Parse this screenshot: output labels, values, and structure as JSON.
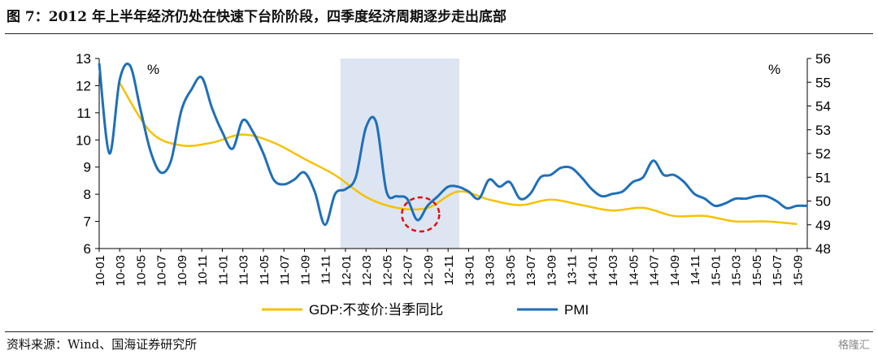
{
  "header": {
    "title": "图 7：2012 年上半年经济仍处在快速下台阶阶段，四季度经济周期逐步走出底部"
  },
  "footer": {
    "source": "资料来源：Wind、国海证券研究所",
    "watermark": "格隆汇"
  },
  "chart_data": {
    "type": "line",
    "title": "",
    "x": [
      "10-01",
      "10-02",
      "10-03",
      "10-04",
      "10-05",
      "10-06",
      "10-07",
      "10-08",
      "10-09",
      "10-10",
      "10-11",
      "10-12",
      "11-01",
      "11-02",
      "11-03",
      "11-04",
      "11-05",
      "11-06",
      "11-07",
      "11-08",
      "11-09",
      "11-10",
      "11-11",
      "11-12",
      "12-01",
      "12-02",
      "12-03",
      "12-04",
      "12-05",
      "12-06",
      "12-07",
      "12-08",
      "12-09",
      "12-10",
      "12-11",
      "12-12",
      "13-01",
      "13-02",
      "13-03",
      "13-04",
      "13-05",
      "13-06",
      "13-07",
      "13-08",
      "13-09",
      "13-10",
      "13-11",
      "13-12",
      "14-01",
      "14-02",
      "14-03",
      "14-04",
      "14-05",
      "14-06",
      "14-07",
      "14-08",
      "14-09",
      "14-10",
      "14-11",
      "14-12",
      "15-01",
      "15-02",
      "15-03",
      "15-04",
      "15-05",
      "15-06",
      "15-07",
      "15-08",
      "15-09",
      "15-10"
    ],
    "tick_labels": [
      "10-01",
      "10-03",
      "10-05",
      "10-07",
      "10-09",
      "10-11",
      "11-01",
      "11-03",
      "11-05",
      "11-07",
      "11-09",
      "11-11",
      "12-01",
      "12-03",
      "12-05",
      "12-07",
      "12-09",
      "12-11",
      "13-01",
      "13-03",
      "13-05",
      "13-07",
      "13-09",
      "13-11",
      "14-01",
      "14-03",
      "14-05",
      "14-07",
      "14-09",
      "14-11",
      "15-01",
      "15-03",
      "15-05",
      "15-07",
      "15-09"
    ],
    "left_axis": {
      "unit": "%",
      "ylim": [
        6,
        13
      ],
      "ticks": [
        6,
        7,
        8,
        9,
        10,
        11,
        12,
        13
      ]
    },
    "right_axis": {
      "unit": "%",
      "ylim": [
        48,
        56
      ],
      "ticks": [
        48,
        49,
        50,
        51,
        52,
        53,
        54,
        55,
        56
      ]
    },
    "series": [
      {
        "name": "GDP:不变价:当季同比",
        "axis": "left",
        "color": "#F5C200",
        "points": [
          [
            "10-03",
            12.1
          ],
          [
            "10-06",
            10.3
          ],
          [
            "10-09",
            9.8
          ],
          [
            "10-12",
            9.9
          ],
          [
            "11-03",
            10.2
          ],
          [
            "11-06",
            9.9
          ],
          [
            "11-09",
            9.3
          ],
          [
            "11-12",
            8.7
          ],
          [
            "12-03",
            7.9
          ],
          [
            "12-06",
            7.5
          ],
          [
            "12-09",
            7.5
          ],
          [
            "12-12",
            8.1
          ],
          [
            "13-03",
            7.8
          ],
          [
            "13-06",
            7.6
          ],
          [
            "13-09",
            7.8
          ],
          [
            "13-12",
            7.6
          ],
          [
            "14-03",
            7.4
          ],
          [
            "14-06",
            7.5
          ],
          [
            "14-09",
            7.2
          ],
          [
            "14-12",
            7.2
          ],
          [
            "15-03",
            7.0
          ],
          [
            "15-06",
            7.0
          ],
          [
            "15-09",
            6.9
          ]
        ]
      },
      {
        "name": "PMI",
        "axis": "right",
        "color": "#1F6FB8",
        "values": [
          55.8,
          52.0,
          55.1,
          55.7,
          53.9,
          52.1,
          51.2,
          51.7,
          53.8,
          54.7,
          55.2,
          53.9,
          52.9,
          52.2,
          53.4,
          52.9,
          52.0,
          50.9,
          50.7,
          50.9,
          51.2,
          50.4,
          49.0,
          50.3,
          50.5,
          51.0,
          53.1,
          53.3,
          50.4,
          50.2,
          50.1,
          49.2,
          49.8,
          50.2,
          50.6,
          50.6,
          50.4,
          50.1,
          50.9,
          50.6,
          50.8,
          50.1,
          50.3,
          51.0,
          51.1,
          51.4,
          51.4,
          51.0,
          50.5,
          50.2,
          50.3,
          50.4,
          50.8,
          51.0,
          51.7,
          51.1,
          51.1,
          50.8,
          50.3,
          50.1,
          49.8,
          49.9,
          50.1,
          50.1,
          50.2,
          50.2,
          50.0,
          49.7,
          49.8,
          49.8
        ]
      }
    ],
    "annotations": {
      "shaded_region": [
        "12-01",
        "12-12"
      ],
      "highlight_circle": "12-08"
    },
    "legend": "bottom",
    "grid": false
  }
}
